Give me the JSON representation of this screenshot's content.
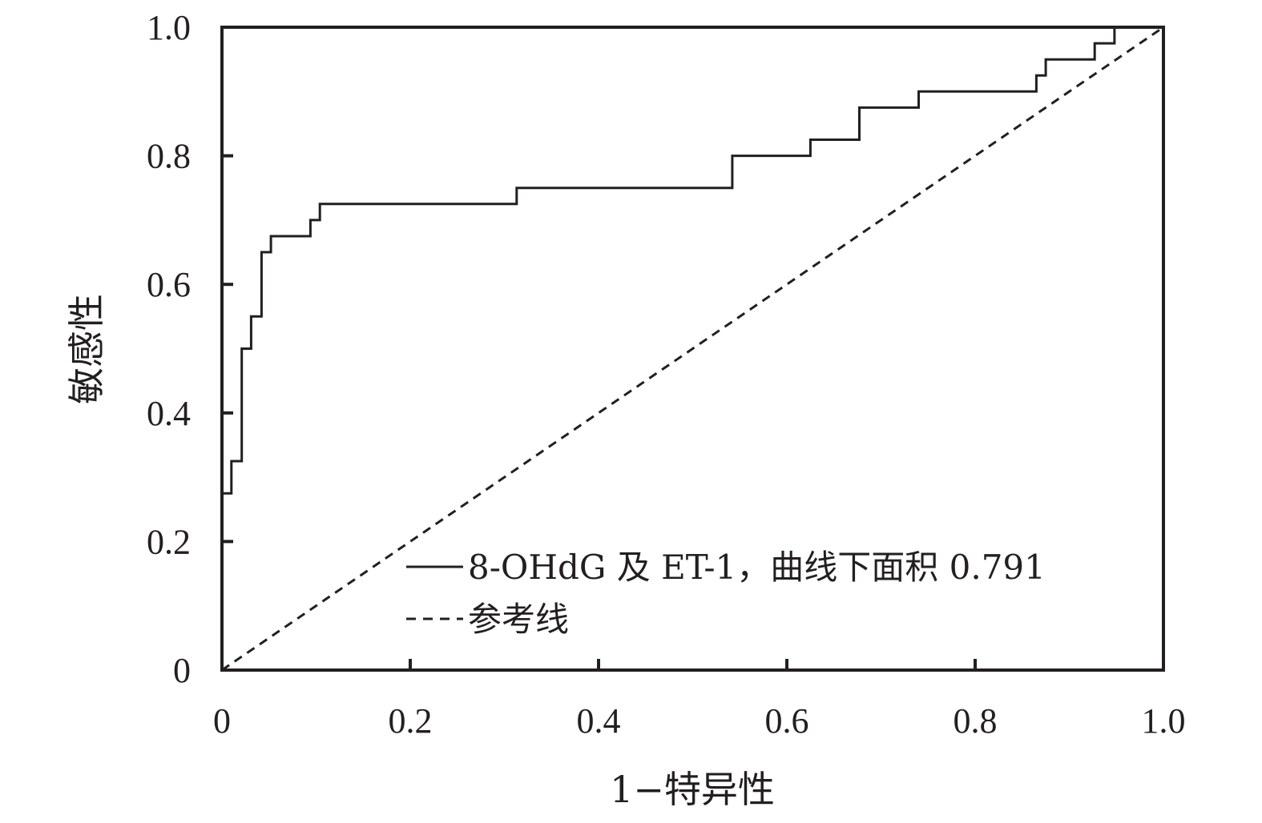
{
  "chart_data": {
    "type": "line",
    "xlabel": "1−特异性",
    "ylabel": "敏感性",
    "xlim": [
      0,
      1
    ],
    "ylim": [
      0,
      1
    ],
    "x_ticks": [
      "0",
      "0.2",
      "0.4",
      "0.6",
      "0.8",
      "1.0"
    ],
    "y_ticks": [
      "0",
      "0.2",
      "0.4",
      "0.6",
      "0.8",
      "1.0"
    ],
    "grid": false,
    "legend_position": "bottom-right",
    "series": [
      {
        "name": "8-OHdG 及 ET-1，曲线下面积 0.791",
        "style": "solid",
        "step": true,
        "points": [
          [
            0,
            0
          ],
          [
            0,
            0.275
          ],
          [
            0.01,
            0.275
          ],
          [
            0.01,
            0.325
          ],
          [
            0.021,
            0.325
          ],
          [
            0.021,
            0.5
          ],
          [
            0.031,
            0.5
          ],
          [
            0.031,
            0.55
          ],
          [
            0.042,
            0.55
          ],
          [
            0.042,
            0.65
          ],
          [
            0.052,
            0.65
          ],
          [
            0.052,
            0.675
          ],
          [
            0.094,
            0.675
          ],
          [
            0.094,
            0.7
          ],
          [
            0.104,
            0.7
          ],
          [
            0.104,
            0.725
          ],
          [
            0.313,
            0.725
          ],
          [
            0.313,
            0.75
          ],
          [
            0.542,
            0.75
          ],
          [
            0.542,
            0.8
          ],
          [
            0.625,
            0.8
          ],
          [
            0.625,
            0.825
          ],
          [
            0.677,
            0.825
          ],
          [
            0.677,
            0.875
          ],
          [
            0.74,
            0.875
          ],
          [
            0.74,
            0.9
          ],
          [
            0.865,
            0.9
          ],
          [
            0.865,
            0.925
          ],
          [
            0.875,
            0.925
          ],
          [
            0.875,
            0.95
          ],
          [
            0.927,
            0.95
          ],
          [
            0.927,
            0.975
          ],
          [
            0.948,
            0.975
          ],
          [
            0.948,
            1.0
          ],
          [
            1.0,
            1.0
          ]
        ]
      },
      {
        "name": "参考线",
        "style": "dashed",
        "points": [
          [
            0,
            0
          ],
          [
            1,
            1
          ]
        ]
      }
    ]
  },
  "colors": {
    "line": "#231f20",
    "background": "#ffffff"
  }
}
